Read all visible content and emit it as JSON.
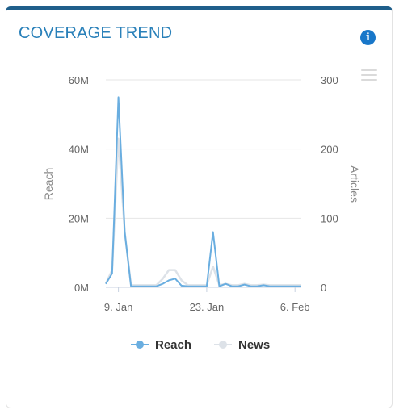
{
  "card": {
    "title": "COVERAGE TREND"
  },
  "icons": {
    "info": "info-icon",
    "menu": "hamburger-menu-icon",
    "info_glyph": "i"
  },
  "colors": {
    "reach": "#6aaee0",
    "news": "#dde2e8",
    "header_border": "#1f5f8b",
    "title": "#2980b9"
  },
  "chart_data": {
    "type": "line",
    "x_ticks": [
      "9. Jan",
      "23. Jan",
      "6. Feb"
    ],
    "x": [
      "7. Jan",
      "8. Jan",
      "9. Jan",
      "10. Jan",
      "11. Jan",
      "12. Jan",
      "13. Jan",
      "14. Jan",
      "15. Jan",
      "16. Jan",
      "17. Jan",
      "18. Jan",
      "19. Jan",
      "20. Jan",
      "21. Jan",
      "22. Jan",
      "23. Jan",
      "24. Jan",
      "25. Jan",
      "26. Jan",
      "27. Jan",
      "28. Jan",
      "29. Jan",
      "30. Jan",
      "31. Jan",
      "1. Feb",
      "2. Feb",
      "3. Feb",
      "4. Feb",
      "5. Feb",
      "6. Feb",
      "7. Feb"
    ],
    "y_left": {
      "label": "Reach",
      "ticks": [
        "0M",
        "20M",
        "40M",
        "60M"
      ],
      "range": [
        0,
        60000000
      ]
    },
    "y_right": {
      "label": "Articles",
      "ticks": [
        "0",
        "100",
        "200",
        "300"
      ],
      "range": [
        0,
        300
      ]
    },
    "grid": true,
    "legend": {
      "position": "bottom-center"
    },
    "series": [
      {
        "name": "Reach",
        "axis": "left",
        "values": [
          1000000,
          4000000,
          55000000,
          16000000,
          300000,
          300000,
          300000,
          300000,
          300000,
          1000000,
          2000000,
          2500000,
          500000,
          300000,
          300000,
          300000,
          300000,
          16000000,
          300000,
          1000000,
          300000,
          300000,
          800000,
          300000,
          300000,
          600000,
          300000,
          300000,
          300000,
          300000,
          300000,
          300000
        ]
      },
      {
        "name": "News",
        "axis": "right",
        "values": [
          5,
          25,
          215,
          80,
          3,
          3,
          3,
          3,
          3,
          12,
          25,
          25,
          10,
          3,
          3,
          3,
          3,
          30,
          3,
          5,
          3,
          3,
          5,
          3,
          3,
          4,
          3,
          3,
          3,
          3,
          3,
          3
        ]
      }
    ]
  }
}
